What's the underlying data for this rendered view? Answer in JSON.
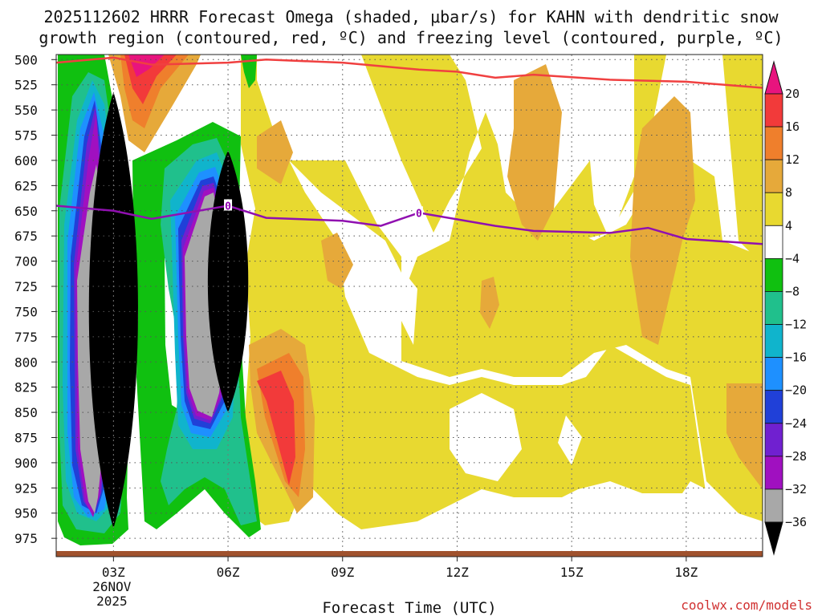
{
  "chart_data": {
    "type": "heatmap",
    "title_line1": "2025112602 HRRR Forecast Omega (shaded, μbar/s) for KAHN with dendritic snow",
    "title_line2": "growth region (contoured, red, ºC) and freezing level (contoured, purple, ºC)",
    "xlabel": "Forecast Time (UTC)",
    "credit": "coolwx.com/models",
    "x_range_hours": [
      1.5,
      20.0
    ],
    "x_ticks": [
      {
        "hour": 3,
        "label": "03Z",
        "sub1": "26NOV",
        "sub2": "2025"
      },
      {
        "hour": 6,
        "label": "06Z",
        "sub1": "",
        "sub2": ""
      },
      {
        "hour": 9,
        "label": "09Z",
        "sub1": "",
        "sub2": ""
      },
      {
        "hour": 12,
        "label": "12Z",
        "sub1": "",
        "sub2": ""
      },
      {
        "hour": 15,
        "label": "15Z",
        "sub1": "",
        "sub2": ""
      },
      {
        "hour": 18,
        "label": "18Z",
        "sub1": "",
        "sub2": ""
      }
    ],
    "y_range_hpa": [
      495,
      990
    ],
    "y_ticks": [
      "500",
      "525",
      "550",
      "575",
      "600",
      "625",
      "650",
      "675",
      "700",
      "725",
      "750",
      "775",
      "800",
      "825",
      "850",
      "875",
      "900",
      "925",
      "950",
      "975"
    ],
    "colorbar": {
      "levels": [
        "20",
        "16",
        "12",
        "8",
        "4",
        "−4",
        "−8",
        "−12",
        "−16",
        "−20",
        "−24",
        "−28",
        "−32",
        "−36"
      ],
      "colors": [
        "#e8147e",
        "#f23a3a",
        "#ef7f2c",
        "#e6a93a",
        "#e8d930",
        "#ffffff",
        "#10c010",
        "#20c08c",
        "#10b4cc",
        "#1e90ff",
        "#2040d8",
        "#7020d0",
        "#a010c0",
        "#a8a8a8",
        "#000000"
      ]
    },
    "freezing_level": {
      "label": "0",
      "points": [
        [
          1.5,
          645
        ],
        [
          3,
          650
        ],
        [
          4,
          658
        ],
        [
          6,
          645
        ],
        [
          7,
          657
        ],
        [
          9,
          660
        ],
        [
          10,
          665
        ],
        [
          11,
          652
        ],
        [
          13,
          665
        ],
        [
          14,
          670
        ],
        [
          16,
          672
        ],
        [
          17,
          667
        ],
        [
          18,
          678
        ],
        [
          20,
          683
        ]
      ]
    },
    "dgz_top": {
      "points": [
        [
          1.5,
          503
        ],
        [
          3,
          498
        ],
        [
          4,
          505
        ],
        [
          6,
          503
        ],
        [
          7,
          500
        ],
        [
          9,
          503
        ],
        [
          11,
          510
        ],
        [
          12,
          512
        ],
        [
          13,
          518
        ],
        [
          14,
          515
        ],
        [
          16,
          520
        ],
        [
          18,
          522
        ],
        [
          20,
          528
        ]
      ]
    },
    "cores": [
      {
        "name": "core-03z",
        "center_hour": 3.0,
        "top_hpa": 532,
        "bottom_hpa": 965,
        "min_value": "−36"
      },
      {
        "name": "core-06z",
        "center_hour": 6.0,
        "top_hpa": 590,
        "bottom_hpa": 850,
        "min_value": "−36"
      }
    ]
  }
}
